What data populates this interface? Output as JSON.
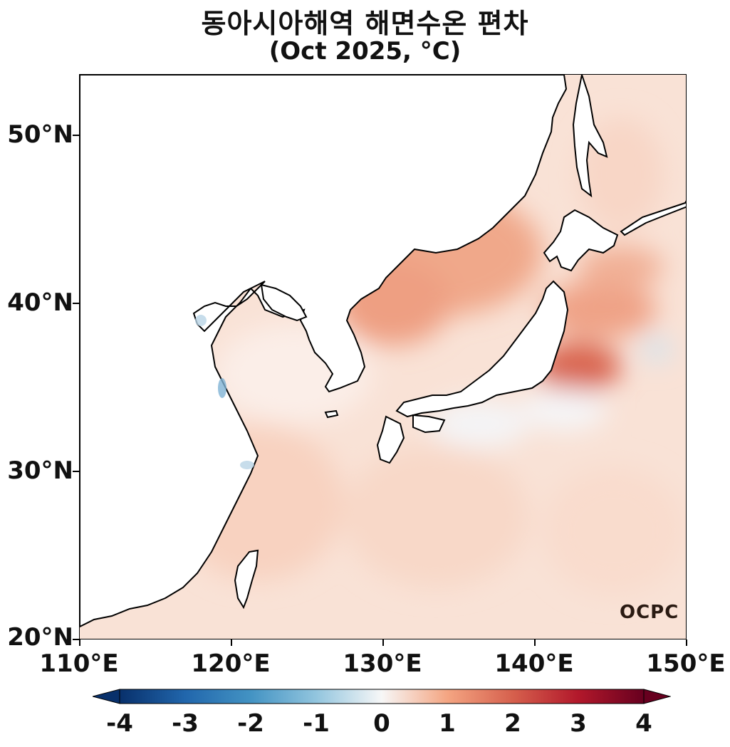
{
  "title": "동아시아해역 해면수온 편차",
  "subtitle": "(Oct 2025, °C)",
  "logo_text": "OCPC",
  "lat_labels": [
    "50°N",
    "40°N",
    "30°N",
    "20°N"
  ],
  "lon_labels": [
    "110°E",
    "120°E",
    "130°E",
    "140°E",
    "150°E"
  ],
  "colorbar": {
    "labels": [
      "-4",
      "-3",
      "-2",
      "-1",
      "0",
      "1",
      "2",
      "3",
      "4"
    ],
    "colors": [
      "#08306b",
      "#2166ac",
      "#4393c3",
      "#92c5de",
      "#f7f7f7",
      "#f4a582",
      "#d6604d",
      "#b2182b",
      "#67001f"
    ]
  }
}
